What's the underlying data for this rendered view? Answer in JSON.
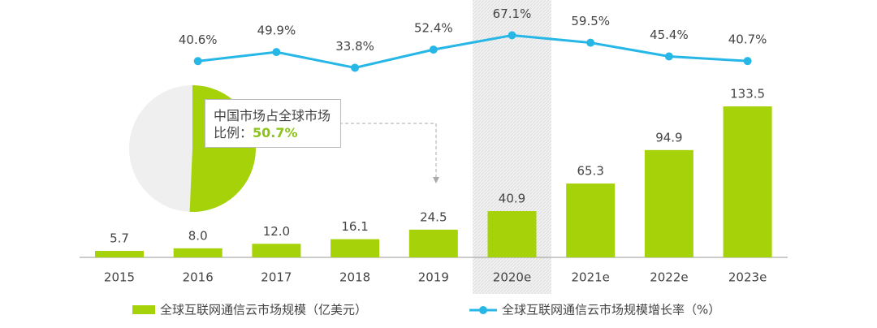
{
  "chart_data": {
    "type": "bar-line",
    "categories": [
      "2015",
      "2016",
      "2017",
      "2018",
      "2019",
      "2020e",
      "2021e",
      "2022e",
      "2023e"
    ],
    "series": [
      {
        "name": "全球互联网通信云市场规模（亿美元）",
        "type": "bar",
        "color": "#a6d20a",
        "values": [
          5.7,
          8.0,
          12.0,
          16.1,
          24.5,
          40.9,
          65.3,
          94.9,
          133.5
        ],
        "value_labels": [
          "5.7",
          "8.0",
          "12.0",
          "16.1",
          "24.5",
          "40.9",
          "65.3",
          "94.9",
          "133.5"
        ]
      },
      {
        "name": "全球互联网通信云市场规模增长率（%）",
        "type": "line",
        "axis": "y2",
        "color": "#27b7e6",
        "values": [
          null,
          40.6,
          49.9,
          33.8,
          52.4,
          67.1,
          59.5,
          45.4,
          40.7
        ],
        "value_labels": [
          null,
          "40.6%",
          "49.9%",
          "33.8%",
          "52.4%",
          "67.1%",
          "59.5%",
          "45.4%",
          "40.7%"
        ]
      }
    ],
    "ylim": [
      0,
      140
    ],
    "y2lim": [
      0,
      100
    ],
    "highlight_category": "2020e",
    "inset": {
      "type": "pie",
      "text": "中国市场占全球市场比例：",
      "value": 50.7,
      "value_label": "50.7%",
      "color": "#a6d20a"
    }
  }
}
